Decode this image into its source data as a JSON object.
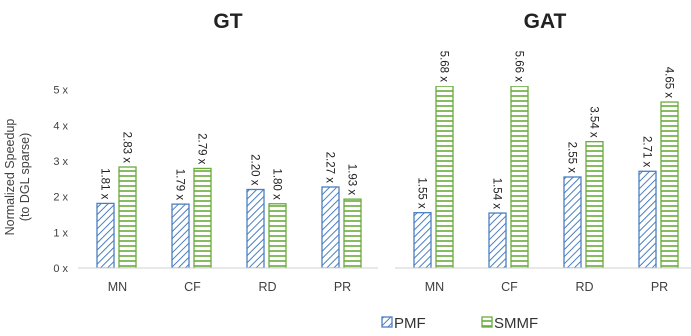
{
  "chart_data": [
    {
      "type": "bar",
      "title": "GT",
      "ylabel": [
        "Normalized Speedup",
        "(to DGL sparse)"
      ],
      "categories": [
        "MN",
        "CF",
        "RD",
        "PR"
      ],
      "series": [
        {
          "name": "PMF",
          "color": "#4a7fc1",
          "pattern": "diagonal",
          "values": [
            1.81,
            1.79,
            2.2,
            2.27
          ],
          "value_labels": [
            "1.81 x",
            "1.79 x",
            "2.20 x",
            "2.27 x"
          ]
        },
        {
          "name": "SMMF",
          "color": "#6aab3c",
          "pattern": "horizontal",
          "values": [
            2.83,
            2.79,
            1.8,
            1.93
          ],
          "value_labels": [
            "2.83 x",
            "2.79 x",
            "1.80 x",
            "1.93 x"
          ]
        }
      ],
      "ylim": [
        0,
        5.1
      ],
      "yticks": [
        {
          "value": 0,
          "label": "0 x"
        },
        {
          "value": 1,
          "label": "1 x"
        },
        {
          "value": 2,
          "label": "2 x"
        },
        {
          "value": 3,
          "label": "3 x"
        },
        {
          "value": 4,
          "label": "4 x"
        },
        {
          "value": 5,
          "label": "5 x"
        }
      ]
    },
    {
      "type": "bar",
      "title": "GAT",
      "categories": [
        "MN",
        "CF",
        "RD",
        "PR"
      ],
      "series": [
        {
          "name": "PMF",
          "color": "#4a7fc1",
          "pattern": "diagonal",
          "values": [
            1.55,
            1.54,
            2.55,
            2.71
          ],
          "value_labels": [
            "1.55 x",
            "1.54 x",
            "2.55 x",
            "2.71 x"
          ]
        },
        {
          "name": "SMMF",
          "color": "#6aab3c",
          "pattern": "horizontal",
          "values": [
            5.68,
            5.66,
            3.54,
            4.65
          ],
          "value_labels": [
            "5.68 x",
            "5.66 x",
            "3.54 x",
            "4.65 x"
          ]
        }
      ],
      "ylim": [
        0,
        5.1
      ]
    }
  ]
}
